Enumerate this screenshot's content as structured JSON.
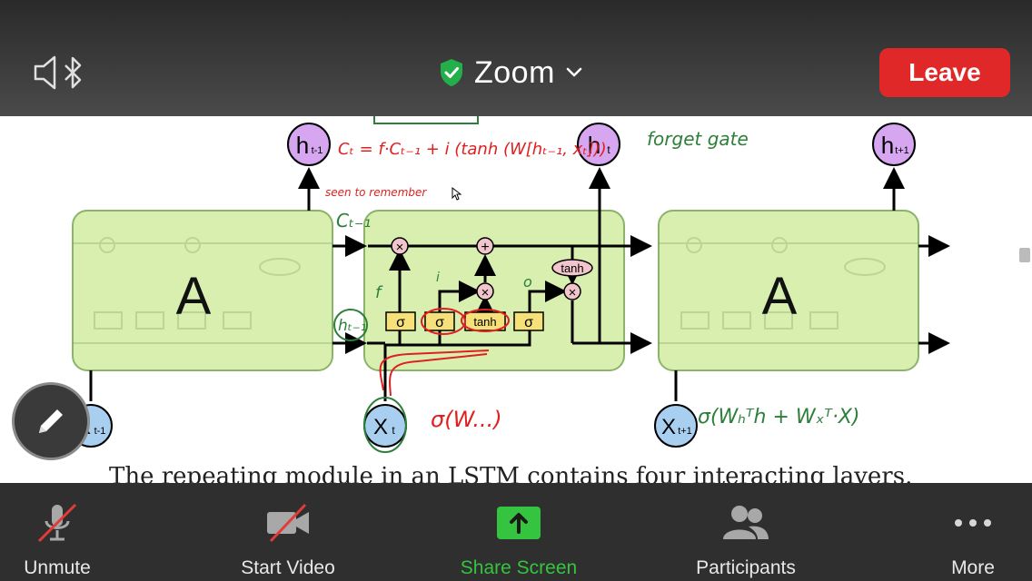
{
  "header": {
    "title": "Zoom",
    "leave_label": "Leave",
    "colors": {
      "leave": "#e02828",
      "shield": "#23b04a"
    }
  },
  "diagram": {
    "cell_label_left": "A",
    "cell_label_right": "A",
    "gates": [
      "σ",
      "σ",
      "tanh",
      "σ"
    ],
    "tanh_out": "tanh",
    "ops": {
      "mult": "×",
      "add": "+"
    },
    "h_prev": "h",
    "h_prev_sub": "t-1",
    "h_cur": "h",
    "h_cur_sub": "t",
    "h_next": "h",
    "h_next_sub": "t+1",
    "x_prev": "X",
    "x_prev_sub": "t-1",
    "x_cur": "X",
    "x_cur_sub": "t",
    "x_next": "X",
    "x_next_sub": "t+1",
    "caption": "The repeating module in an LSTM contains four interacting layers."
  },
  "annotations": {
    "cell_eq": "Cₜ = f·Cₜ₋₁ + i (tanh (W[hₜ₋₁, xₜ]))",
    "forget_gate": "forget gate",
    "seen_to_remember": "seen to remember",
    "c_prev": "Cₜ₋₁",
    "f": "f",
    "i": "i",
    "o": "o",
    "h_t1": "hₜ₋₁",
    "sigma_w": "σ(W...)",
    "sigma_formula": "σ(Wₕᵀh + Wₓᵀ·X)"
  },
  "toolbar": {
    "unmute": "Unmute",
    "start_video": "Start Video",
    "share_screen": "Share Screen",
    "participants": "Participants",
    "more": "More"
  }
}
